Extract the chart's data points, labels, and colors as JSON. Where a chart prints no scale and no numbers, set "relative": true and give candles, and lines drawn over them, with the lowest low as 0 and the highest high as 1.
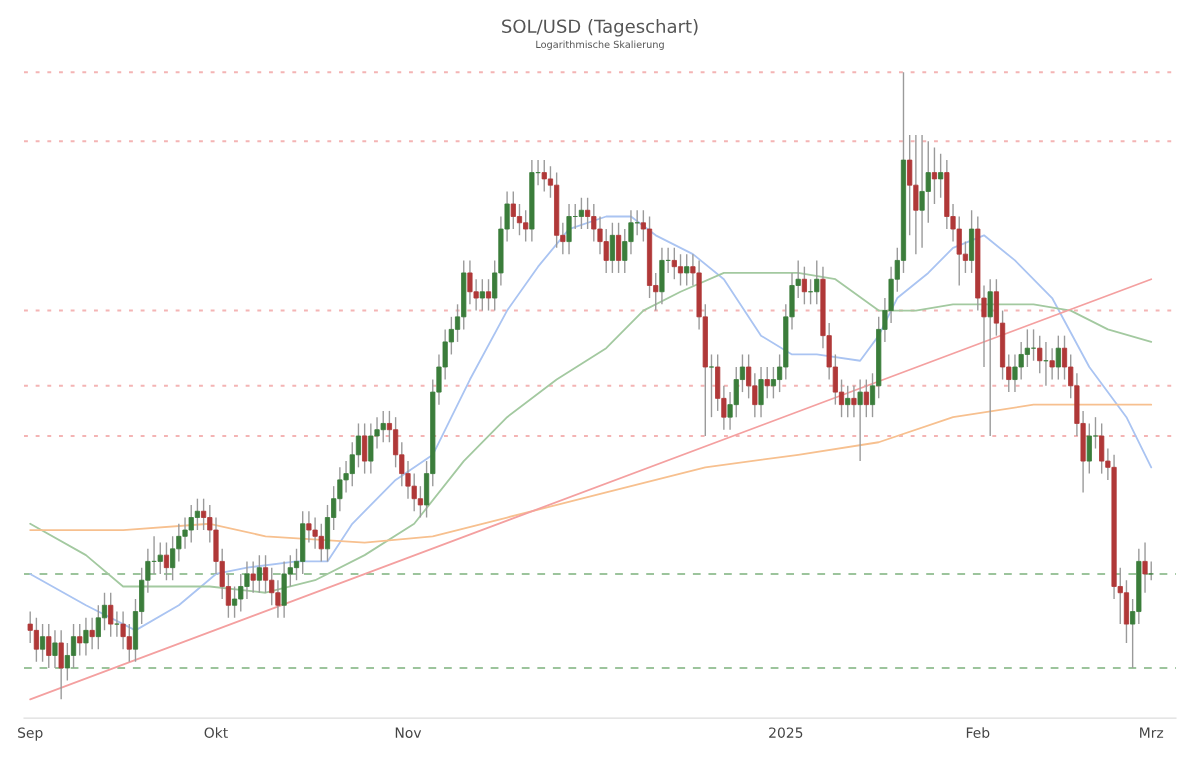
{
  "chart_data": {
    "type": "candlestick",
    "title": "SOL/USD (Tageschart)",
    "subtitle": "Logarithmische Skalierung",
    "relative": true,
    "x": [
      "2024-09-01",
      "2024-09-02",
      "2024-09-03",
      "2024-09-04",
      "2024-09-05",
      "2024-09-06",
      "2024-09-07",
      "2024-09-08",
      "2024-09-09",
      "2024-09-10",
      "2024-09-11",
      "2024-09-12",
      "2024-09-13",
      "2024-09-14",
      "2024-09-15",
      "2024-09-16",
      "2024-09-17",
      "2024-09-18",
      "2024-09-19",
      "2024-09-20",
      "2024-09-21",
      "2024-09-22",
      "2024-09-23",
      "2024-09-24",
      "2024-09-25",
      "2024-09-26",
      "2024-09-27",
      "2024-09-28",
      "2024-09-29",
      "2024-09-30",
      "2024-10-01",
      "2024-10-02",
      "2024-10-03",
      "2024-10-04",
      "2024-10-05",
      "2024-10-06",
      "2024-10-07",
      "2024-10-08",
      "2024-10-09",
      "2024-10-10",
      "2024-10-11",
      "2024-10-12",
      "2024-10-13",
      "2024-10-14",
      "2024-10-15",
      "2024-10-16",
      "2024-10-17",
      "2024-10-18",
      "2024-10-19",
      "2024-10-20",
      "2024-10-21",
      "2024-10-22",
      "2024-10-23",
      "2024-10-24",
      "2024-10-25",
      "2024-10-26",
      "2024-10-27",
      "2024-10-28",
      "2024-10-29",
      "2024-10-30",
      "2024-10-31",
      "2024-11-01",
      "2024-11-02",
      "2024-11-03",
      "2024-11-04",
      "2024-11-05",
      "2024-11-06",
      "2024-11-07",
      "2024-11-08",
      "2024-11-09",
      "2024-11-10",
      "2024-11-11",
      "2024-11-12",
      "2024-11-13",
      "2024-11-14",
      "2024-11-15",
      "2024-11-16",
      "2024-11-17",
      "2024-11-18",
      "2024-11-19",
      "2024-11-20",
      "2024-11-21",
      "2024-11-22",
      "2024-11-23",
      "2024-11-24",
      "2024-11-25",
      "2024-11-26",
      "2024-11-27",
      "2024-11-28",
      "2024-11-29",
      "2024-11-30",
      "2024-12-01",
      "2024-12-02",
      "2024-12-03",
      "2024-12-04",
      "2024-12-05",
      "2024-12-06",
      "2024-12-07",
      "2024-12-08",
      "2024-12-09",
      "2024-12-10",
      "2024-12-11",
      "2024-12-12",
      "2024-12-13",
      "2024-12-14",
      "2024-12-15",
      "2024-12-16",
      "2024-12-17",
      "2024-12-18",
      "2024-12-19",
      "2024-12-20",
      "2024-12-21",
      "2024-12-22",
      "2024-12-23",
      "2024-12-24",
      "2024-12-25",
      "2024-12-26",
      "2024-12-27",
      "2024-12-28",
      "2024-12-29",
      "2024-12-30",
      "2024-12-31",
      "2025-01-01",
      "2025-01-02",
      "2025-01-03",
      "2025-01-04",
      "2025-01-05",
      "2025-01-06",
      "2025-01-07",
      "2025-01-08",
      "2025-01-09",
      "2025-01-10",
      "2025-01-11",
      "2025-01-12",
      "2025-01-13",
      "2025-01-14",
      "2025-01-15",
      "2025-01-16",
      "2025-01-17",
      "2025-01-18",
      "2025-01-19",
      "2025-01-20",
      "2025-01-21",
      "2025-01-22",
      "2025-01-23",
      "2025-01-24",
      "2025-01-25",
      "2025-01-26",
      "2025-01-27",
      "2025-01-28",
      "2025-01-29",
      "2025-01-30",
      "2025-01-31",
      "2025-02-01",
      "2025-02-02",
      "2025-02-03",
      "2025-02-04",
      "2025-02-05",
      "2025-02-06",
      "2025-02-07",
      "2025-02-08",
      "2025-02-09",
      "2025-02-10",
      "2025-02-11",
      "2025-02-12",
      "2025-02-13",
      "2025-02-14",
      "2025-02-15",
      "2025-02-16",
      "2025-02-17",
      "2025-02-18",
      "2025-02-19",
      "2025-02-20",
      "2025-02-21",
      "2025-02-22",
      "2025-02-23",
      "2025-02-24",
      "2025-02-25",
      "2025-02-26",
      "2025-02-27",
      "2025-02-28",
      "2025-03-01"
    ],
    "ohlc": [
      [
        0.12,
        0.14,
        0.09,
        0.11
      ],
      [
        0.11,
        0.13,
        0.06,
        0.08
      ],
      [
        0.08,
        0.12,
        0.06,
        0.1
      ],
      [
        0.1,
        0.12,
        0.05,
        0.07
      ],
      [
        0.07,
        0.11,
        0.05,
        0.09
      ],
      [
        0.09,
        0.11,
        0,
        0.05
      ],
      [
        0.05,
        0.09,
        0.03,
        0.07
      ],
      [
        0.07,
        0.12,
        0.05,
        0.1
      ],
      [
        0.1,
        0.12,
        0.07,
        0.09
      ],
      [
        0.09,
        0.13,
        0.07,
        0.11
      ],
      [
        0.11,
        0.13,
        0.08,
        0.1
      ],
      [
        0.1,
        0.15,
        0.08,
        0.13
      ],
      [
        0.13,
        0.17,
        0.11,
        0.15
      ],
      [
        0.15,
        0.17,
        0.1,
        0.12
      ],
      [
        0.12,
        0.14,
        0.1,
        0.12
      ],
      [
        0.12,
        0.14,
        0.08,
        0.1
      ],
      [
        0.1,
        0.12,
        0.06,
        0.08
      ],
      [
        0.08,
        0.16,
        0.06,
        0.14
      ],
      [
        0.14,
        0.21,
        0.12,
        0.19
      ],
      [
        0.19,
        0.24,
        0.17,
        0.22
      ],
      [
        0.22,
        0.26,
        0.2,
        0.22
      ],
      [
        0.22,
        0.25,
        0.2,
        0.23
      ],
      [
        0.23,
        0.25,
        0.19,
        0.21
      ],
      [
        0.21,
        0.26,
        0.19,
        0.24
      ],
      [
        0.24,
        0.28,
        0.22,
        0.26
      ],
      [
        0.26,
        0.29,
        0.24,
        0.27
      ],
      [
        0.27,
        0.31,
        0.25,
        0.29
      ],
      [
        0.29,
        0.32,
        0.27,
        0.3
      ],
      [
        0.3,
        0.32,
        0.27,
        0.29
      ],
      [
        0.29,
        0.31,
        0.25,
        0.27
      ],
      [
        0.27,
        0.29,
        0.2,
        0.22
      ],
      [
        0.22,
        0.24,
        0.16,
        0.18
      ],
      [
        0.18,
        0.2,
        0.13,
        0.15
      ],
      [
        0.15,
        0.18,
        0.13,
        0.16
      ],
      [
        0.16,
        0.2,
        0.14,
        0.18
      ],
      [
        0.18,
        0.22,
        0.16,
        0.2
      ],
      [
        0.2,
        0.22,
        0.17,
        0.19
      ],
      [
        0.19,
        0.23,
        0.17,
        0.21
      ],
      [
        0.21,
        0.23,
        0.17,
        0.19
      ],
      [
        0.19,
        0.21,
        0.15,
        0.17
      ],
      [
        0.17,
        0.19,
        0.13,
        0.15
      ],
      [
        0.15,
        0.22,
        0.13,
        0.2
      ],
      [
        0.2,
        0.23,
        0.18,
        0.21
      ],
      [
        0.21,
        0.24,
        0.19,
        0.22
      ],
      [
        0.22,
        0.3,
        0.2,
        0.28
      ],
      [
        0.28,
        0.3,
        0.25,
        0.27
      ],
      [
        0.27,
        0.29,
        0.24,
        0.26
      ],
      [
        0.26,
        0.28,
        0.22,
        0.24
      ],
      [
        0.24,
        0.31,
        0.22,
        0.29
      ],
      [
        0.29,
        0.34,
        0.27,
        0.32
      ],
      [
        0.32,
        0.37,
        0.3,
        0.35
      ],
      [
        0.35,
        0.38,
        0.33,
        0.36
      ],
      [
        0.36,
        0.41,
        0.34,
        0.39
      ],
      [
        0.39,
        0.44,
        0.37,
        0.42
      ],
      [
        0.42,
        0.44,
        0.36,
        0.38
      ],
      [
        0.38,
        0.44,
        0.36,
        0.42
      ],
      [
        0.42,
        0.45,
        0.4,
        0.43
      ],
      [
        0.43,
        0.46,
        0.41,
        0.44
      ],
      [
        0.44,
        0.46,
        0.41,
        0.43
      ],
      [
        0.43,
        0.45,
        0.37,
        0.39
      ],
      [
        0.39,
        0.41,
        0.34,
        0.36
      ],
      [
        0.36,
        0.38,
        0.32,
        0.34
      ],
      [
        0.34,
        0.36,
        0.3,
        0.32
      ],
      [
        0.32,
        0.34,
        0.29,
        0.31
      ],
      [
        0.31,
        0.38,
        0.29,
        0.36
      ],
      [
        0.36,
        0.51,
        0.34,
        0.49
      ],
      [
        0.49,
        0.55,
        0.47,
        0.53
      ],
      [
        0.53,
        0.59,
        0.51,
        0.57
      ],
      [
        0.57,
        0.61,
        0.55,
        0.59
      ],
      [
        0.59,
        0.63,
        0.57,
        0.61
      ],
      [
        0.61,
        0.7,
        0.59,
        0.68
      ],
      [
        0.68,
        0.7,
        0.63,
        0.65
      ],
      [
        0.65,
        0.67,
        0.62,
        0.64
      ],
      [
        0.64,
        0.67,
        0.62,
        0.65
      ],
      [
        0.65,
        0.67,
        0.62,
        0.64
      ],
      [
        0.64,
        0.7,
        0.62,
        0.68
      ],
      [
        0.68,
        0.77,
        0.66,
        0.75
      ],
      [
        0.75,
        0.81,
        0.73,
        0.79
      ],
      [
        0.79,
        0.81,
        0.75,
        0.77
      ],
      [
        0.77,
        0.79,
        0.74,
        0.76
      ],
      [
        0.76,
        0.78,
        0.73,
        0.75
      ],
      [
        0.75,
        0.86,
        0.73,
        0.84
      ],
      [
        0.84,
        0.86,
        0.82,
        0.84
      ],
      [
        0.84,
        0.86,
        0.81,
        0.83
      ],
      [
        0.83,
        0.85,
        0.8,
        0.82
      ],
      [
        0.82,
        0.84,
        0.72,
        0.74
      ],
      [
        0.74,
        0.76,
        0.71,
        0.73
      ],
      [
        0.73,
        0.79,
        0.71,
        0.77
      ],
      [
        0.77,
        0.79,
        0.75,
        0.77
      ],
      [
        0.77,
        0.8,
        0.75,
        0.78
      ],
      [
        0.78,
        0.8,
        0.75,
        0.77
      ],
      [
        0.77,
        0.79,
        0.73,
        0.75
      ],
      [
        0.75,
        0.77,
        0.71,
        0.73
      ],
      [
        0.73,
        0.75,
        0.68,
        0.7
      ],
      [
        0.7,
        0.76,
        0.68,
        0.74
      ],
      [
        0.74,
        0.76,
        0.68,
        0.7
      ],
      [
        0.7,
        0.75,
        0.68,
        0.73
      ],
      [
        0.73,
        0.78,
        0.71,
        0.76
      ],
      [
        0.76,
        0.78,
        0.74,
        0.76
      ],
      [
        0.76,
        0.78,
        0.73,
        0.75
      ],
      [
        0.75,
        0.77,
        0.64,
        0.66
      ],
      [
        0.66,
        0.68,
        0.62,
        0.65
      ],
      [
        0.65,
        0.72,
        0.63,
        0.7
      ],
      [
        0.7,
        0.72,
        0.68,
        0.7
      ],
      [
        0.7,
        0.72,
        0.67,
        0.69
      ],
      [
        0.69,
        0.71,
        0.66,
        0.68
      ],
      [
        0.68,
        0.71,
        0.66,
        0.69
      ],
      [
        0.69,
        0.71,
        0.66,
        0.68
      ],
      [
        0.68,
        0.7,
        0.59,
        0.61
      ],
      [
        0.61,
        0.63,
        0.42,
        0.53
      ],
      [
        0.53,
        0.55,
        0.45,
        0.53
      ],
      [
        0.53,
        0.55,
        0.46,
        0.48
      ],
      [
        0.48,
        0.5,
        0.43,
        0.45
      ],
      [
        0.45,
        0.49,
        0.43,
        0.47
      ],
      [
        0.47,
        0.53,
        0.45,
        0.51
      ],
      [
        0.51,
        0.55,
        0.49,
        0.53
      ],
      [
        0.53,
        0.55,
        0.48,
        0.5
      ],
      [
        0.5,
        0.52,
        0.45,
        0.47
      ],
      [
        0.47,
        0.53,
        0.45,
        0.51
      ],
      [
        0.51,
        0.53,
        0.48,
        0.5
      ],
      [
        0.5,
        0.53,
        0.48,
        0.51
      ],
      [
        0.51,
        0.55,
        0.49,
        0.53
      ],
      [
        0.53,
        0.63,
        0.51,
        0.61
      ],
      [
        0.61,
        0.68,
        0.59,
        0.66
      ],
      [
        0.66,
        0.7,
        0.64,
        0.67
      ],
      [
        0.67,
        0.69,
        0.63,
        0.65
      ],
      [
        0.65,
        0.67,
        0.63,
        0.65
      ],
      [
        0.65,
        0.7,
        0.63,
        0.67
      ],
      [
        0.67,
        0.69,
        0.56,
        0.58
      ],
      [
        0.58,
        0.6,
        0.51,
        0.53
      ],
      [
        0.53,
        0.55,
        0.47,
        0.49
      ],
      [
        0.49,
        0.51,
        0.45,
        0.47
      ],
      [
        0.47,
        0.5,
        0.45,
        0.48
      ],
      [
        0.48,
        0.5,
        0.45,
        0.47
      ],
      [
        0.47,
        0.51,
        0.38,
        0.49
      ],
      [
        0.49,
        0.51,
        0.45,
        0.47
      ],
      [
        0.47,
        0.52,
        0.45,
        0.5
      ],
      [
        0.5,
        0.61,
        0.48,
        0.59
      ],
      [
        0.59,
        0.64,
        0.57,
        0.62
      ],
      [
        0.62,
        0.69,
        0.6,
        0.67
      ],
      [
        0.67,
        0.72,
        0.65,
        0.7
      ],
      [
        0.7,
        1,
        0.68,
        0.86
      ],
      [
        0.86,
        0.9,
        0.74,
        0.82
      ],
      [
        0.82,
        0.9,
        0.71,
        0.78
      ],
      [
        0.78,
        0.9,
        0.72,
        0.81
      ],
      [
        0.81,
        0.89,
        0.76,
        0.84
      ],
      [
        0.84,
        0.88,
        0.79,
        0.83
      ],
      [
        0.83,
        0.87,
        0.8,
        0.84
      ],
      [
        0.84,
        0.86,
        0.75,
        0.77
      ],
      [
        0.77,
        0.79,
        0.73,
        0.75
      ],
      [
        0.75,
        0.77,
        0.66,
        0.71
      ],
      [
        0.71,
        0.73,
        0.68,
        0.7
      ],
      [
        0.7,
        0.78,
        0.68,
        0.75
      ],
      [
        0.75,
        0.77,
        0.62,
        0.64
      ],
      [
        0.64,
        0.66,
        0.53,
        0.61
      ],
      [
        0.61,
        0.67,
        0.42,
        0.65
      ],
      [
        0.65,
        0.67,
        0.58,
        0.6
      ],
      [
        0.6,
        0.62,
        0.51,
        0.53
      ],
      [
        0.53,
        0.55,
        0.49,
        0.51
      ],
      [
        0.51,
        0.55,
        0.49,
        0.53
      ],
      [
        0.53,
        0.57,
        0.51,
        0.55
      ],
      [
        0.55,
        0.59,
        0.53,
        0.56
      ],
      [
        0.56,
        0.59,
        0.54,
        0.56
      ],
      [
        0.56,
        0.58,
        0.52,
        0.54
      ],
      [
        0.54,
        0.57,
        0.5,
        0.54
      ],
      [
        0.54,
        0.56,
        0.51,
        0.53
      ],
      [
        0.53,
        0.58,
        0.51,
        0.56
      ],
      [
        0.56,
        0.58,
        0.51,
        0.53
      ],
      [
        0.53,
        0.55,
        0.48,
        0.5
      ],
      [
        0.5,
        0.52,
        0.42,
        0.44
      ],
      [
        0.44,
        0.46,
        0.33,
        0.38
      ],
      [
        0.38,
        0.44,
        0.36,
        0.42
      ],
      [
        0.42,
        0.45,
        0.4,
        0.42
      ],
      [
        0.42,
        0.44,
        0.36,
        0.38
      ],
      [
        0.38,
        0.4,
        0.35,
        0.37
      ],
      [
        0.37,
        0.39,
        0.16,
        0.18
      ],
      [
        0.18,
        0.21,
        0.12,
        0.17
      ],
      [
        0.17,
        0.19,
        0.09,
        0.12
      ],
      [
        0.12,
        0.16,
        0.05,
        0.14
      ],
      [
        0.14,
        0.24,
        0.12,
        0.22
      ],
      [
        0.22,
        0.25,
        0.17,
        0.2
      ],
      [
        0.2,
        0.22,
        0.19,
        0.2
      ]
    ],
    "series": [
      {
        "type": "line",
        "color": "#aac4f2",
        "x": [
          "2024-09-01",
          "2024-09-10",
          "2024-09-18",
          "2024-09-25",
          "2024-10-01",
          "2024-10-06",
          "2024-10-14",
          "2024-10-19",
          "2024-10-23",
          "2024-10-30",
          "2024-11-05",
          "2024-11-11",
          "2024-11-17",
          "2024-11-22",
          "2024-11-27",
          "2024-12-03",
          "2024-12-07",
          "2024-12-11",
          "2024-12-17",
          "2024-12-22",
          "2024-12-28",
          "2025-01-02",
          "2025-01-06",
          "2025-01-13",
          "2025-01-16",
          "2025-01-19",
          "2025-01-24",
          "2025-01-28",
          "2025-02-02",
          "2025-02-07",
          "2025-02-13",
          "2025-02-19",
          "2025-02-25",
          "2025-03-01"
        ],
        "values": [
          0.2,
          0.15,
          0.11,
          0.15,
          0.2,
          0.21,
          0.22,
          0.22,
          0.28,
          0.35,
          0.39,
          0.51,
          0.62,
          0.69,
          0.75,
          0.77,
          0.77,
          0.74,
          0.71,
          0.67,
          0.58,
          0.55,
          0.55,
          0.54,
          0.58,
          0.64,
          0.68,
          0.72,
          0.74,
          0.7,
          0.64,
          0.53,
          0.45,
          0.37
        ]
      },
      {
        "type": "line",
        "color": "#a3c9a0",
        "x": [
          "2024-09-01",
          "2024-09-10",
          "2024-09-16",
          "2024-09-30",
          "2024-10-09",
          "2024-10-17",
          "2024-10-25",
          "2024-11-02",
          "2024-11-10",
          "2024-11-17",
          "2024-11-25",
          "2024-12-03",
          "2024-12-09",
          "2024-12-15",
          "2024-12-22",
          "2024-12-28",
          "2025-01-03",
          "2025-01-09",
          "2025-01-16",
          "2025-01-22",
          "2025-01-28",
          "2025-02-03",
          "2025-02-10",
          "2025-02-16",
          "2025-02-22",
          "2025-03-01"
        ],
        "values": [
          0.28,
          0.23,
          0.18,
          0.18,
          0.17,
          0.19,
          0.23,
          0.28,
          0.38,
          0.45,
          0.51,
          0.56,
          0.62,
          0.65,
          0.68,
          0.68,
          0.68,
          0.67,
          0.62,
          0.62,
          0.63,
          0.63,
          0.63,
          0.62,
          0.59,
          0.57
        ]
      },
      {
        "type": "line",
        "color": "#f7c08f",
        "x": [
          "2024-09-01",
          "2024-09-16",
          "2024-09-30",
          "2024-10-09",
          "2024-10-25",
          "2024-11-05",
          "2024-11-17",
          "2024-12-03",
          "2024-12-19",
          "2025-01-03",
          "2025-01-16",
          "2025-01-28",
          "2025-02-10",
          "2025-02-19",
          "2025-03-01"
        ],
        "values": [
          0.27,
          0.27,
          0.28,
          0.26,
          0.25,
          0.26,
          0.29,
          0.33,
          0.37,
          0.39,
          0.41,
          0.45,
          0.47,
          0.47,
          0.47
        ]
      },
      {
        "type": "line",
        "color": "#f4a0a0",
        "x": [
          "2024-09-01",
          "2025-03-01"
        ],
        "values": [
          0,
          0.67
        ]
      }
    ],
    "ref_lines": [
      {
        "axis": "y",
        "value": 1,
        "color": "#f4b4b4",
        "line_style": "dotted"
      },
      {
        "axis": "y",
        "value": 0.89,
        "color": "#f4b4b4",
        "line_style": "dotted"
      },
      {
        "axis": "y",
        "value": 0.62,
        "color": "#f4b4b4",
        "line_style": "dotted"
      },
      {
        "axis": "y",
        "value": 0.5,
        "color": "#f4b4b4",
        "line_style": "dotted"
      },
      {
        "axis": "y",
        "value": 0.42,
        "color": "#f4b4b4",
        "line_style": "dotted"
      },
      {
        "axis": "y",
        "value": 0.2,
        "color": "#9cc49c",
        "line_style": "dashed"
      },
      {
        "axis": "y",
        "value": 0.05,
        "color": "#9cc49c",
        "line_style": "dashed"
      }
    ],
    "xlim": [
      "2024-08-31",
      "2025-03-05"
    ],
    "xticks": [
      {
        "value": "2024-09-01",
        "label": "Sep"
      },
      {
        "value": "2024-10-01",
        "label": "Okt"
      },
      {
        "value": "2024-11-01",
        "label": "Nov"
      },
      {
        "value": "2025-01-01",
        "label": "2025"
      },
      {
        "value": "2025-02-01",
        "label": "Feb"
      },
      {
        "value": "2025-03-01",
        "label": "Mrz"
      }
    ],
    "grid": false,
    "legend": false
  }
}
